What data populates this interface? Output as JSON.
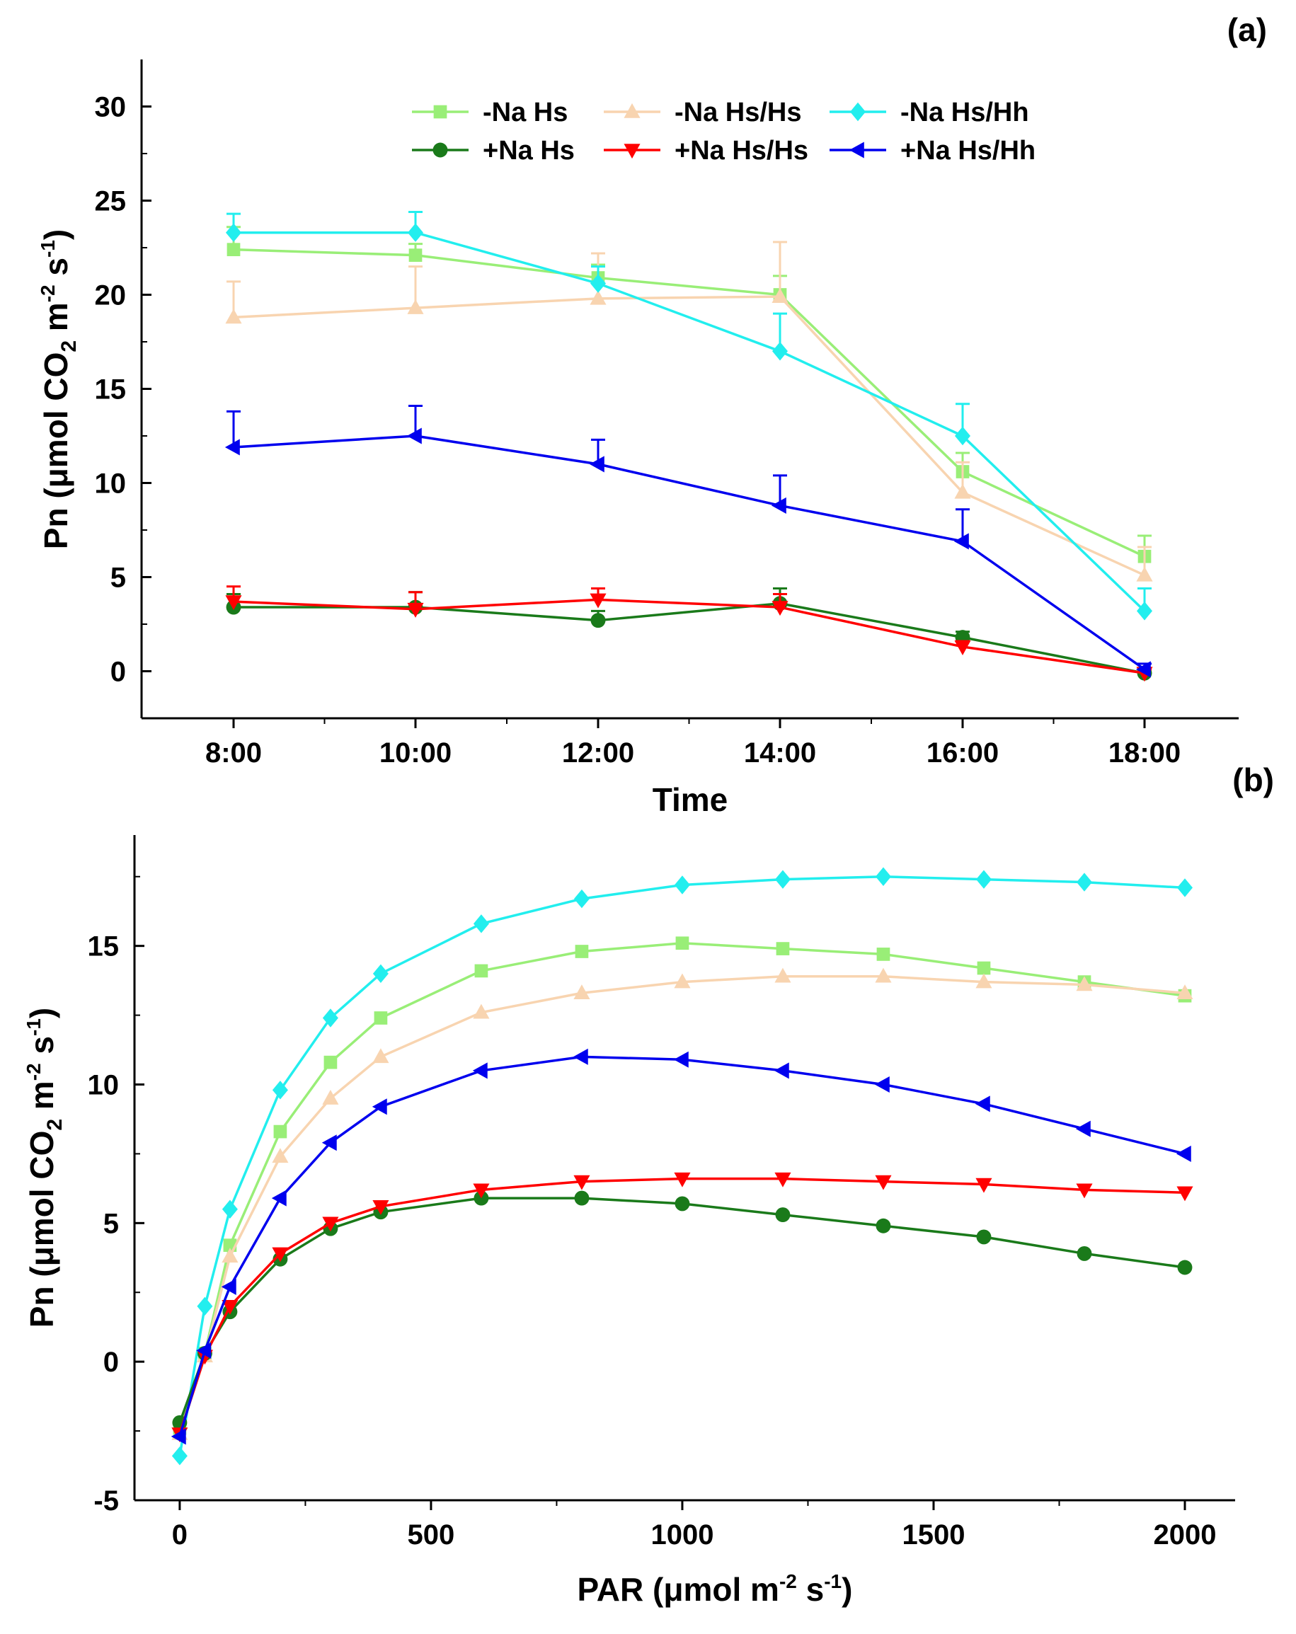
{
  "chart_data": [
    {
      "type": "line",
      "panel_label": "(a)",
      "title": "",
      "xlabel": "Time",
      "ylabel": "Pn (μmol CO₂ m⁻² s⁻¹)",
      "ylabel_parts": {
        "main": "Pn (μmol CO",
        "sub": "2",
        "mid1": " m",
        "sup1": "-2",
        "mid2": " s",
        "sup2": "-1",
        "end": ")"
      },
      "categories": [
        "8:00",
        "10:00",
        "12:00",
        "14:00",
        "16:00",
        "18:00"
      ],
      "ylim": [
        -2.5,
        32.5
      ],
      "yticks": [
        0,
        5,
        10,
        15,
        20,
        25,
        30
      ],
      "ytick_labels": [
        "0",
        "5",
        "10",
        "15",
        "20",
        "25",
        "30"
      ],
      "legend_position": "top-center",
      "series": [
        {
          "name": "-Na Hs",
          "color": "#99EE77",
          "marker": "square",
          "values": [
            22.4,
            22.1,
            20.9,
            20.0,
            10.6,
            6.1
          ],
          "errors": [
            1.2,
            0.6,
            0.7,
            1.0,
            1.0,
            1.1
          ]
        },
        {
          "name": "-Na Hs/Hs",
          "color": "#F8D4B0",
          "marker": "triangle-up",
          "values": [
            18.8,
            19.3,
            19.8,
            19.9,
            9.5,
            5.1
          ],
          "errors": [
            1.9,
            2.2,
            2.4,
            2.9,
            1.6,
            1.5
          ]
        },
        {
          "name": "-Na Hs/Hh",
          "color": "#22EEEE",
          "marker": "diamond",
          "values": [
            23.3,
            23.3,
            20.6,
            17.0,
            12.5,
            3.2
          ],
          "errors": [
            1.0,
            1.1,
            0.9,
            2.0,
            1.7,
            1.2
          ]
        },
        {
          "name": "+Na Hs",
          "color": "#1A7A1A",
          "marker": "circle",
          "values": [
            3.4,
            3.4,
            2.7,
            3.6,
            1.8,
            -0.1
          ],
          "errors": [
            0.7,
            0.8,
            0.5,
            0.8,
            0.3,
            0.2
          ]
        },
        {
          "name": "+Na Hs/Hs",
          "color": "#FF0000",
          "marker": "triangle-down",
          "values": [
            3.7,
            3.3,
            3.8,
            3.4,
            1.3,
            -0.1
          ],
          "errors": [
            0.8,
            0.9,
            0.6,
            0.7,
            0.3,
            0.2
          ]
        },
        {
          "name": "+Na Hs/Hh",
          "color": "#0000EE",
          "marker": "triangle-left",
          "values": [
            11.9,
            12.5,
            11.0,
            8.8,
            6.9,
            0.1
          ],
          "errors": [
            1.9,
            1.6,
            1.3,
            1.6,
            1.7,
            0.3
          ]
        }
      ]
    },
    {
      "type": "line",
      "panel_label": "(b)",
      "title": "",
      "xlabel": "PAR (μmol m⁻² s⁻¹)",
      "xlabel_parts": {
        "main": "PAR (μmol m",
        "sup1": "-2",
        "mid": " s",
        "sup2": "-1",
        "end": ")"
      },
      "ylabel": "Pn (μmol CO₂ m⁻² s⁻¹)",
      "ylabel_parts": {
        "main": "Pn (μmol CO",
        "sub": "2",
        "mid1": " m",
        "sup1": "-2",
        "mid2": " s",
        "sup2": "-1",
        "end": ")"
      },
      "x": [
        0,
        50,
        100,
        200,
        300,
        400,
        600,
        800,
        1000,
        1200,
        1400,
        1600,
        1800,
        2000
      ],
      "xlim": [
        -90,
        2100
      ],
      "xticks": [
        0,
        500,
        1000,
        1500,
        2000
      ],
      "xtick_labels": [
        "0",
        "500",
        "1000",
        "1500",
        "2000"
      ],
      "ylim": [
        -5,
        19
      ],
      "yticks": [
        -5,
        0,
        5,
        10,
        15
      ],
      "ytick_labels": [
        "-5",
        "0",
        "5",
        "10",
        "15"
      ],
      "series": [
        {
          "name": "-Na Hs",
          "color": "#99EE77",
          "marker": "square",
          "values": [
            -2.4,
            0.3,
            4.2,
            8.3,
            10.8,
            12.4,
            14.1,
            14.8,
            15.1,
            14.9,
            14.7,
            14.2,
            13.7,
            13.2
          ]
        },
        {
          "name": "-Na Hs/Hs",
          "color": "#F8D4B0",
          "marker": "triangle-up",
          "values": [
            -2.6,
            0.2,
            3.8,
            7.4,
            9.5,
            11.0,
            12.6,
            13.3,
            13.7,
            13.9,
            13.9,
            13.7,
            13.6,
            13.3
          ]
        },
        {
          "name": "-Na Hs/Hh",
          "color": "#22EEEE",
          "marker": "diamond",
          "values": [
            -3.4,
            2.0,
            5.5,
            9.8,
            12.4,
            14.0,
            15.8,
            16.7,
            17.2,
            17.4,
            17.5,
            17.4,
            17.3,
            17.1
          ]
        },
        {
          "name": "+Na Hs",
          "color": "#1A7A1A",
          "marker": "circle",
          "values": [
            -2.2,
            0.3,
            1.8,
            3.7,
            4.8,
            5.4,
            5.9,
            5.9,
            5.7,
            5.3,
            4.9,
            4.5,
            3.9,
            3.4
          ]
        },
        {
          "name": "+Na Hs/Hs",
          "color": "#FF0000",
          "marker": "triangle-down",
          "values": [
            -2.6,
            0.2,
            2.0,
            3.9,
            5.0,
            5.6,
            6.2,
            6.5,
            6.6,
            6.6,
            6.5,
            6.4,
            6.2,
            6.1
          ]
        },
        {
          "name": "+Na Hs/Hh",
          "color": "#0000EE",
          "marker": "triangle-left",
          "values": [
            -2.7,
            0.4,
            2.7,
            5.9,
            7.9,
            9.2,
            10.5,
            11.0,
            10.9,
            10.5,
            10.0,
            9.3,
            8.4,
            7.5
          ]
        }
      ]
    }
  ]
}
